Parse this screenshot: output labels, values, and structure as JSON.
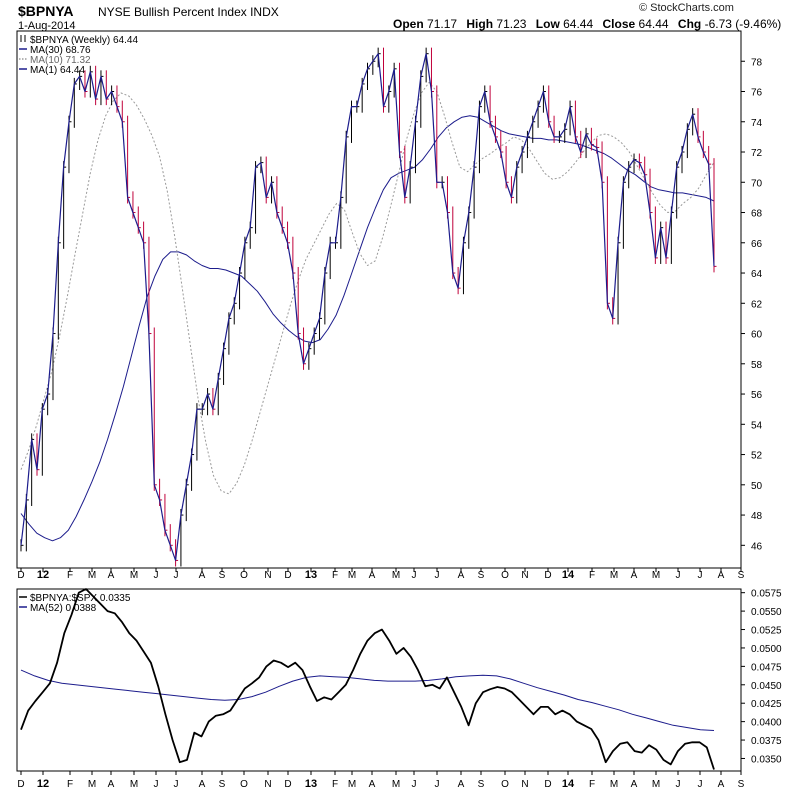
{
  "header": {
    "symbol": "$BPNYA",
    "name": "NYSE Bullish Percent Index  INDX",
    "date": "1-Aug-2014",
    "open_label": "Open",
    "open": "71.17",
    "high_label": "High",
    "high": "71.23",
    "low_label": "Low",
    "low": "64.44",
    "close_label": "Close",
    "close": "64.44",
    "chg_label": "Chg",
    "chg": "-6.73 (-9.46%)",
    "copyright": "© StockCharts.com"
  },
  "colors": {
    "price": "#000000",
    "down": "#c0003a",
    "ma30": "#1c1c8c",
    "ma10": "#9a9a9a",
    "ma1": "#1c1c8c",
    "ratio": "#000000",
    "ratio_ma": "#1c1c8c"
  },
  "chart_data": [
    {
      "type": "line",
      "panel": "main",
      "ylim": [
        44.5,
        80
      ],
      "yticks": [
        46,
        48,
        50,
        52,
        54,
        56,
        58,
        60,
        62,
        64,
        66,
        68,
        70,
        72,
        74,
        76,
        78
      ],
      "xticks": [
        "D",
        "12",
        "F",
        "M",
        "A",
        "M",
        "J",
        "J",
        "A",
        "S",
        "O",
        "N",
        "D",
        "13",
        "F",
        "M",
        "A",
        "M",
        "J",
        "J",
        "A",
        "S",
        "O",
        "N",
        "D",
        "14",
        "F",
        "M",
        "A",
        "M",
        "J",
        "J",
        "A",
        "S"
      ],
      "legend": [
        {
          "marker": "bar",
          "text": "$BPNYA (Weekly) 64.44"
        },
        {
          "marker": "solid",
          "text": "MA(30) 68.76"
        },
        {
          "marker": "dotted",
          "text": "MA(10) 71.32"
        },
        {
          "marker": "solid",
          "text": "MA(1) 64.44"
        }
      ],
      "series": [
        {
          "name": "$BPNYA",
          "values": [
            46,
            49,
            53,
            51,
            55,
            56,
            60,
            66,
            71,
            74,
            76.5,
            77,
            76,
            77.3,
            75.5,
            77,
            75.5,
            76,
            75,
            74,
            69,
            68,
            67,
            66,
            60,
            50,
            49,
            47,
            46,
            45,
            48,
            50,
            52,
            55,
            55,
            56,
            55,
            57,
            59,
            61,
            62,
            64,
            66,
            67,
            71,
            71.3,
            69,
            70,
            68,
            67,
            66,
            64,
            60,
            58,
            59,
            60,
            61,
            64,
            66,
            66,
            69,
            73,
            75,
            75,
            76.5,
            77.5,
            78,
            78.5,
            75,
            76,
            77.5,
            72,
            69,
            71,
            74,
            77,
            78.5,
            76,
            70,
            70,
            68,
            64,
            63,
            66,
            68,
            71,
            75,
            76,
            74,
            73,
            72,
            70,
            69,
            71,
            72,
            73,
            74,
            75,
            76,
            74,
            73,
            73,
            73.5,
            75,
            73,
            72,
            73.2,
            72.5,
            72.3,
            70,
            62,
            61,
            66,
            70,
            71,
            71.5,
            71.3,
            70.5,
            68,
            65,
            67,
            65,
            68,
            71,
            72,
            73.5,
            74.5,
            73,
            72,
            71.2,
            64.44
          ]
        },
        {
          "name": "MA(30)",
          "values": [
            48.1,
            47.4,
            46.8,
            46.5,
            46.3,
            46.5,
            47,
            47.9,
            49,
            50.2,
            51.5,
            53,
            54.7,
            56.5,
            58.5,
            60.5,
            62.4,
            63.8,
            64.9,
            65.4,
            65.4,
            65.2,
            64.8,
            64.5,
            64.3,
            64.3,
            64.2,
            64,
            63.8,
            63.3,
            62.8,
            62.1,
            61.3,
            60.7,
            60.2,
            59.8,
            59.5,
            59.4,
            59.6,
            60.3,
            61.2,
            62.5,
            64,
            65.5,
            67,
            68.3,
            69.5,
            70.3,
            70.6,
            70.8,
            71,
            71.5,
            72.2,
            73,
            73.6,
            74,
            74.3,
            74.4,
            74.3,
            74,
            73.7,
            73.4,
            73.2,
            73.1,
            73,
            72.9,
            72.9,
            72.8,
            72.8,
            72.7,
            72.6,
            72.5,
            72.3,
            72.1,
            71.9,
            71.6,
            71.2,
            70.8,
            70.5,
            70.1,
            69.7,
            69.5,
            69.4,
            69.3,
            69.3,
            69.2,
            69.1,
            69.0,
            68.76
          ]
        },
        {
          "name": "MA(10)",
          "values": [
            51,
            52.3,
            53.9,
            55.7,
            57.5,
            59.8,
            62.4,
            65.2,
            67.9,
            70.6,
            72.8,
            74.4,
            75.4,
            75.9,
            75.7,
            75.1,
            74.2,
            73.1,
            71.7,
            69.4,
            66.3,
            62.8,
            59.2,
            55.7,
            52.8,
            50.6,
            49.6,
            49.4,
            50.1,
            51.3,
            52.9,
            54.7,
            56.5,
            58.3,
            60.1,
            61.9,
            63.5,
            64.9,
            65.9,
            66.9,
            67.9,
            68.6,
            68.2,
            66.7,
            65.3,
            64.5,
            64.8,
            66.4,
            68.4,
            70.5,
            72.7,
            74.5,
            75.9,
            76.6,
            76,
            74.4,
            72.6,
            71,
            70.7,
            71.2,
            71.6,
            71.9,
            72.3,
            72.6,
            73,
            72.8,
            72.2,
            71.4,
            70.6,
            70.2,
            70.3,
            70.7,
            71.3,
            72,
            72.6,
            73.1,
            73.2,
            73,
            72.6,
            72,
            71.1,
            70.2,
            69.3,
            68.5,
            68,
            68.1,
            68.6,
            69,
            69.6,
            70.5,
            71.32
          ]
        }
      ]
    },
    {
      "type": "line",
      "panel": "ratio",
      "ylim": [
        0.0333,
        0.058
      ],
      "yticks": [
        "0.0575",
        "0.0550",
        "0.0525",
        "0.0500",
        "0.0475",
        "0.0450",
        "0.0425",
        "0.0400",
        "0.0375",
        "0.0350"
      ],
      "xticks": [
        "D",
        "12",
        "F",
        "M",
        "A",
        "M",
        "J",
        "J",
        "A",
        "S",
        "O",
        "N",
        "D",
        "13",
        "F",
        "M",
        "A",
        "M",
        "J",
        "J",
        "A",
        "S",
        "O",
        "N",
        "D",
        "14",
        "F",
        "M",
        "A",
        "M",
        "J",
        "J",
        "A",
        "S"
      ],
      "legend": [
        {
          "marker": "solid",
          "text": "$BPNYA:$SPX 0.0335"
        },
        {
          "marker": "solid",
          "text": "MA(52) 0.0388"
        }
      ],
      "series": [
        {
          "name": "$BPNYA:$SPX",
          "values": [
            0.0389,
            0.0415,
            0.0428,
            0.044,
            0.0452,
            0.048,
            0.052,
            0.0545,
            0.0575,
            0.058,
            0.057,
            0.056,
            0.055,
            0.0547,
            0.0535,
            0.052,
            0.051,
            0.0495,
            0.048,
            0.0448,
            0.041,
            0.0375,
            0.0345,
            0.0348,
            0.0385,
            0.038,
            0.04,
            0.0408,
            0.041,
            0.0415,
            0.043,
            0.0445,
            0.0452,
            0.046,
            0.0475,
            0.0483,
            0.048,
            0.0474,
            0.048,
            0.047,
            0.0448,
            0.0428,
            0.0433,
            0.043,
            0.044,
            0.045,
            0.047,
            0.0492,
            0.051,
            0.052,
            0.0525,
            0.051,
            0.0492,
            0.05,
            0.0488,
            0.047,
            0.0448,
            0.045,
            0.0445,
            0.046,
            0.044,
            0.042,
            0.0395,
            0.0425,
            0.044,
            0.0444,
            0.0447,
            0.0445,
            0.044,
            0.043,
            0.042,
            0.041,
            0.042,
            0.042,
            0.041,
            0.0415,
            0.041,
            0.04,
            0.0395,
            0.039,
            0.0375,
            0.0345,
            0.036,
            0.037,
            0.0372,
            0.036,
            0.0358,
            0.0368,
            0.0362,
            0.0348,
            0.0342,
            0.036,
            0.037,
            0.0372,
            0.0372,
            0.0365,
            0.0335
          ]
        },
        {
          "name": "MA(52)",
          "values": [
            0.047,
            0.0462,
            0.0456,
            0.0452,
            0.045,
            0.0448,
            0.0446,
            0.0444,
            0.0442,
            0.044,
            0.0438,
            0.0436,
            0.0434,
            0.0432,
            0.043,
            0.0429,
            0.043,
            0.0434,
            0.044,
            0.0448,
            0.0455,
            0.046,
            0.0462,
            0.0461,
            0.046,
            0.0458,
            0.0456,
            0.0455,
            0.0455,
            0.0455,
            0.0456,
            0.0458,
            0.0461,
            0.0462,
            0.0463,
            0.0462,
            0.0458,
            0.0452,
            0.0446,
            0.0441,
            0.0436,
            0.043,
            0.0426,
            0.0421,
            0.0416,
            0.041,
            0.0405,
            0.04,
            0.0395,
            0.0392,
            0.0389,
            0.0388
          ]
        }
      ]
    }
  ]
}
